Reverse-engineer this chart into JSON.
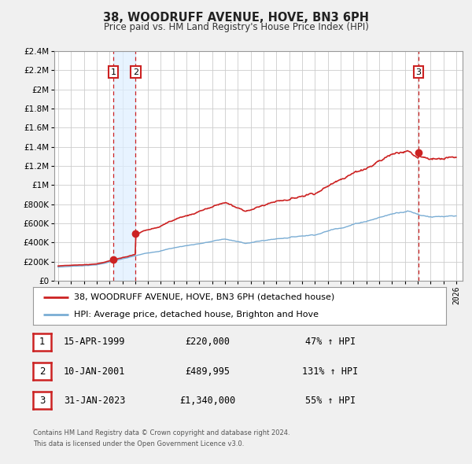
{
  "title": "38, WOODRUFF AVENUE, HOVE, BN3 6PH",
  "subtitle": "Price paid vs. HM Land Registry's House Price Index (HPI)",
  "sale_prices": [
    220000,
    489995,
    1340000
  ],
  "sale_years": [
    1999.29,
    2001.03,
    2023.08
  ],
  "sale_labels": [
    "1",
    "2",
    "3"
  ],
  "hpi_line_color": "#7aadd4",
  "price_line_color": "#cc2222",
  "sale_dot_color": "#cc2222",
  "legend_line1": "38, WOODRUFF AVENUE, HOVE, BN3 6PH (detached house)",
  "legend_line2": "HPI: Average price, detached house, Brighton and Hove",
  "table_rows": [
    [
      "1",
      "15-APR-1999",
      "£220,000",
      "47% ↑ HPI"
    ],
    [
      "2",
      "10-JAN-2001",
      "£489,995",
      "131% ↑ HPI"
    ],
    [
      "3",
      "31-JAN-2023",
      "£1,340,000",
      "55% ↑ HPI"
    ]
  ],
  "footnote1": "Contains HM Land Registry data © Crown copyright and database right 2024.",
  "footnote2": "This data is licensed under the Open Government Licence v3.0.",
  "ylim": [
    0,
    2400000
  ],
  "ytick_values": [
    0,
    200000,
    400000,
    600000,
    800000,
    1000000,
    1200000,
    1400000,
    1600000,
    1800000,
    2000000,
    2200000,
    2400000
  ],
  "ytick_labels": [
    "£0",
    "£200K",
    "£400K",
    "£600K",
    "£800K",
    "£1M",
    "£1.2M",
    "£1.4M",
    "£1.6M",
    "£1.8M",
    "£2M",
    "£2.2M",
    "£2.4M"
  ],
  "xlim": [
    1994.7,
    2026.5
  ],
  "xticks": [
    1995,
    1996,
    1997,
    1998,
    1999,
    2000,
    2001,
    2002,
    2003,
    2004,
    2005,
    2006,
    2007,
    2008,
    2009,
    2010,
    2011,
    2012,
    2013,
    2014,
    2015,
    2016,
    2017,
    2018,
    2019,
    2020,
    2021,
    2022,
    2023,
    2024,
    2025,
    2026
  ],
  "bg_color": "#f0f0f0",
  "plot_bg_color": "#ffffff",
  "grid_color": "#cccccc",
  "shaded_color": "#ddeeff",
  "label_box_color": "#cc2222"
}
